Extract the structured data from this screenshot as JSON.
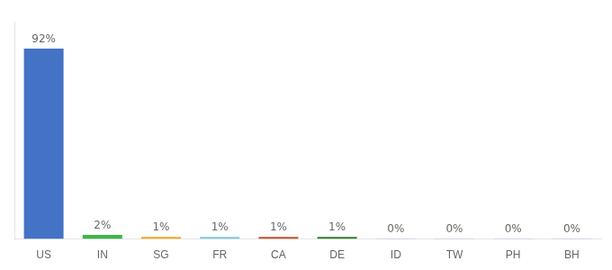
{
  "chart_data": {
    "type": "bar",
    "categories": [
      "US",
      "IN",
      "SG",
      "FR",
      "CA",
      "DE",
      "ID",
      "TW",
      "PH",
      "BH"
    ],
    "values": [
      92,
      2,
      1,
      1,
      1,
      1,
      0.15,
      0.15,
      0.15,
      0.15
    ],
    "value_labels": [
      "92%",
      "2%",
      "1%",
      "1%",
      "1%",
      "1%",
      "0%",
      "0%",
      "0%",
      "0%"
    ],
    "colors": [
      "#4472C4",
      "#3CB54A",
      "#F5A623",
      "#7EC8E3",
      "#C0522A",
      "#2E7D32",
      "#4472C4",
      "#4472C4",
      "#4472C4",
      "#4472C4"
    ],
    "ylim": [
      0,
      105
    ],
    "grid": false,
    "data_labels": true,
    "tick_labels": "x"
  }
}
